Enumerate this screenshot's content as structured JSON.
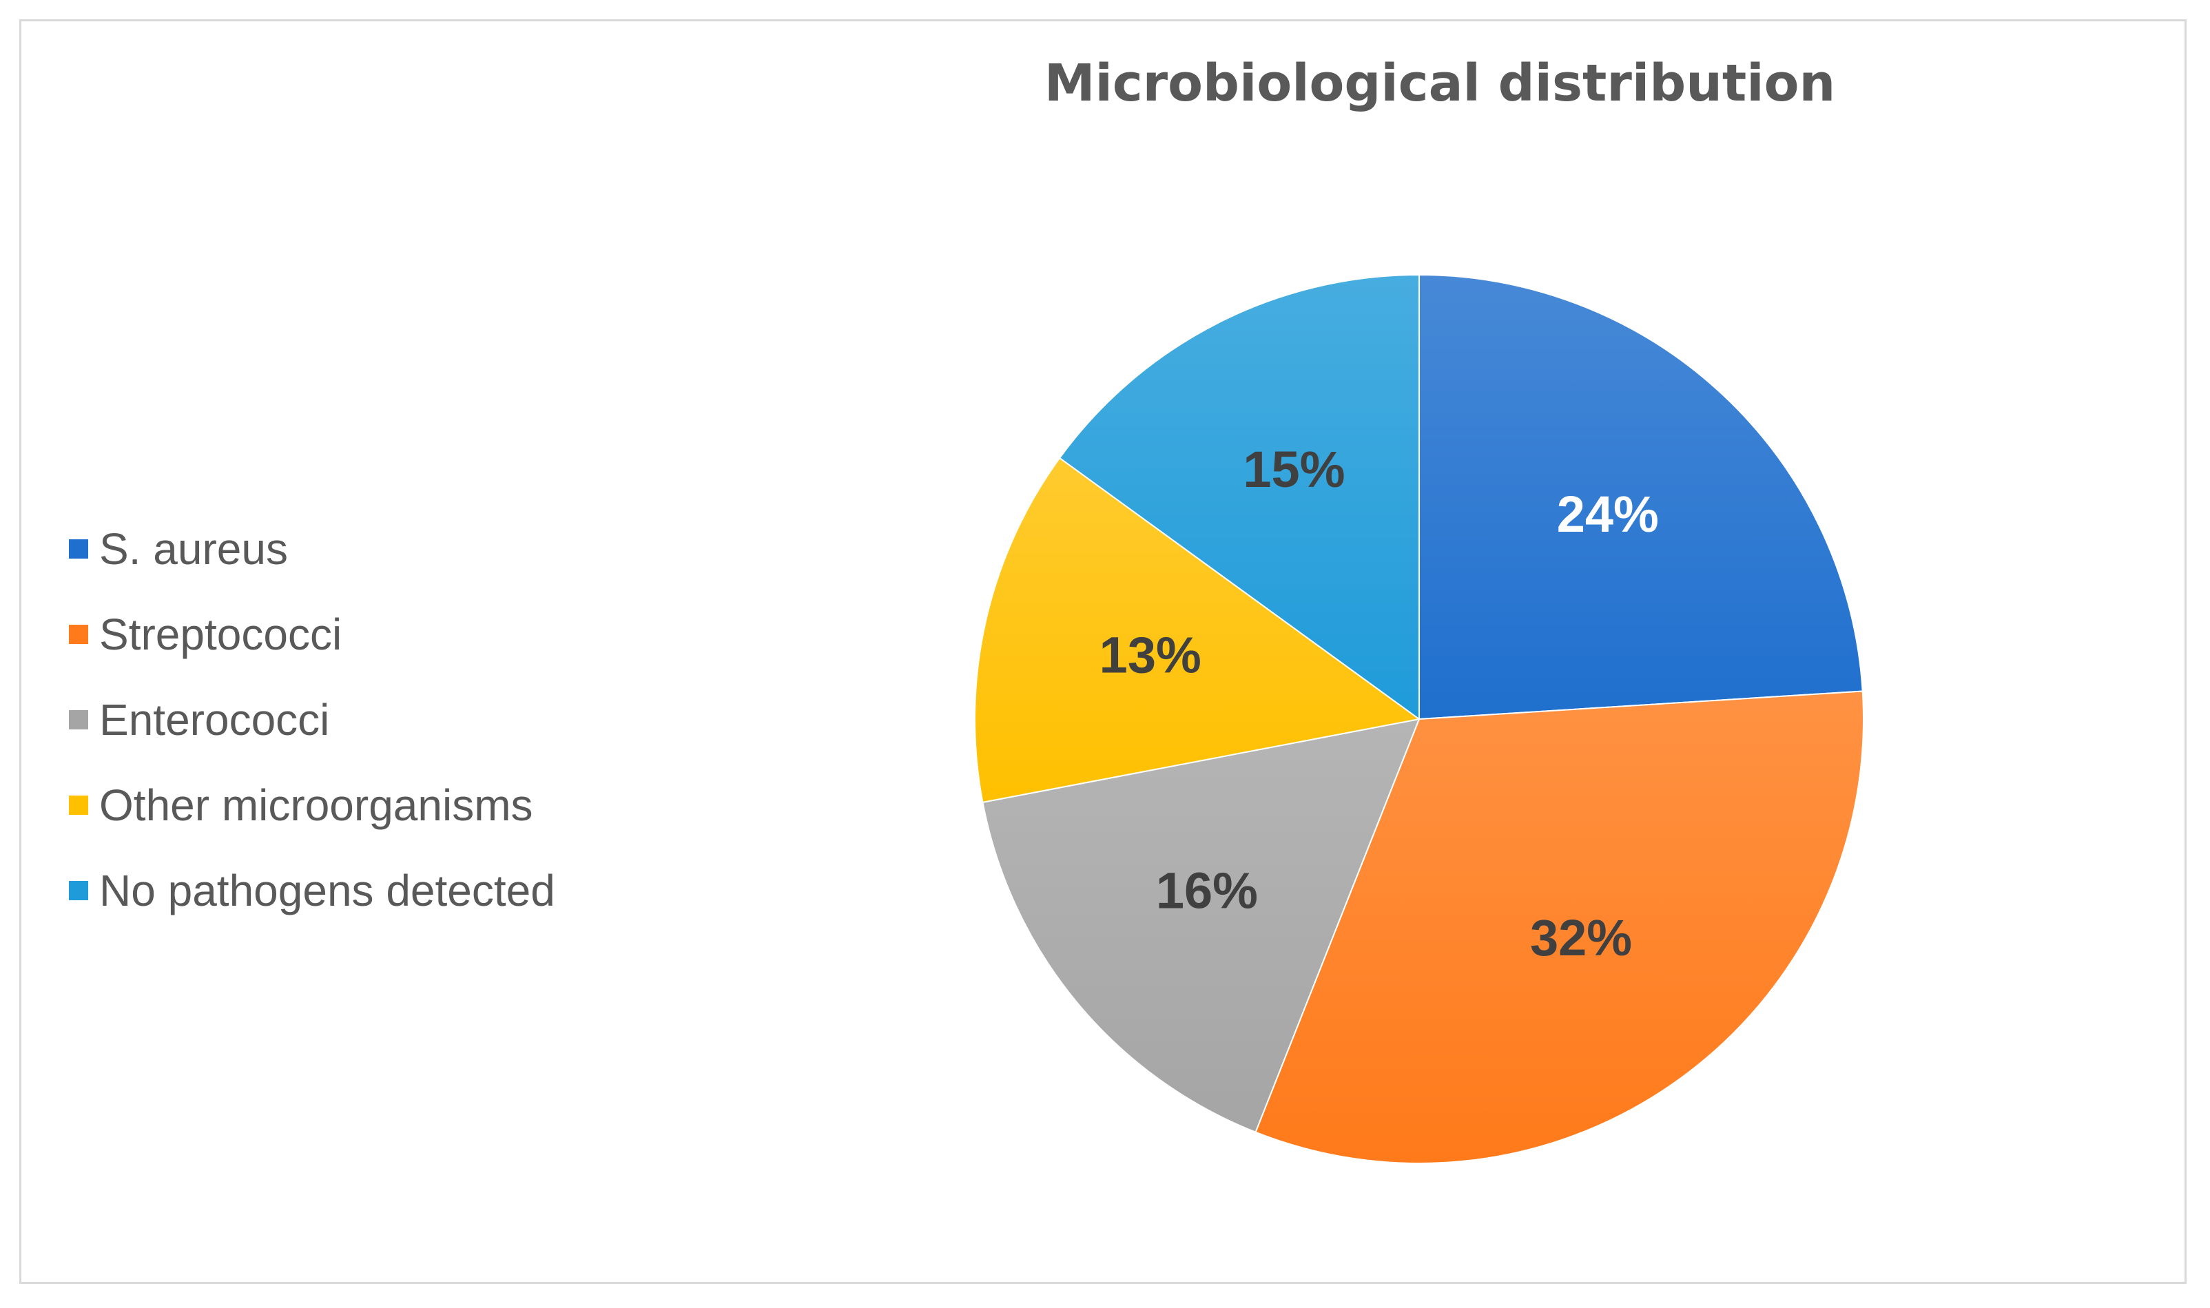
{
  "chart_data": {
    "type": "pie",
    "title": "Microbiological distribution",
    "categories": [
      "S. aureus",
      "Streptococci",
      "Enterococci",
      "Other microorganisms",
      "No pathogens detected"
    ],
    "values": [
      24,
      32,
      16,
      13,
      15
    ],
    "value_labels": [
      "24%",
      "32%",
      "16%",
      "13%",
      "15%"
    ],
    "colors": [
      "#1f6fce",
      "#ff7a1a",
      "#a5a5a5",
      "#ffc000",
      "#1f9bd9"
    ],
    "label_colors": [
      "#ffffff",
      "#404040",
      "#404040",
      "#404040",
      "#404040"
    ],
    "start_angle": "12 o'clock",
    "direction": "clockwise",
    "legend_position": "left"
  }
}
